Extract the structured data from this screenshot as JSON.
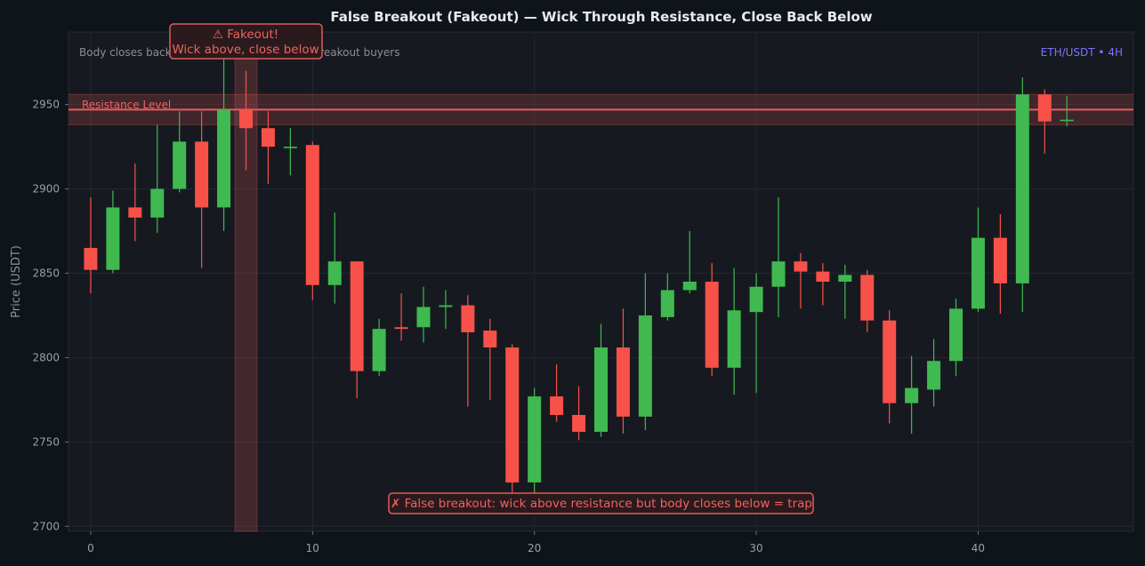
{
  "chart_data": {
    "type": "candlestick",
    "title": "False Breakout (Fakeout) — Wick Through Resistance, Close Back Below",
    "xlabel": "",
    "ylabel": "Price (USDT)",
    "symbol_label": "ETH/USDT • 4H",
    "note": "Body closes back below resistance — traps breakout buyers",
    "x_ticks": [
      0,
      10,
      20,
      30,
      40
    ],
    "y_ticks": [
      2700,
      2750,
      2800,
      2850,
      2900,
      2950
    ],
    "xlim": [
      -1,
      47
    ],
    "ylim": [
      2697,
      2993
    ],
    "resistance": {
      "label": "Resistance Level",
      "value": 2947,
      "zone": [
        2938,
        2956
      ]
    },
    "fakeout_candle_index": 7,
    "callout_top": {
      "line1": "⚠ Fakeout!",
      "line2": "Wick above, close below"
    },
    "callout_bottom": "✗ False breakout: wick above resistance but body closes below = trap",
    "colors": {
      "up": "#3fb950",
      "down": "#f85149",
      "resistance": "#e05a5a",
      "symbol": "#7c72ff",
      "background": "#161a20"
    },
    "candles": [
      {
        "x": 0,
        "open": 2865,
        "close": 2852,
        "high": 2895,
        "low": 2838
      },
      {
        "x": 1,
        "open": 2852,
        "close": 2889,
        "high": 2899,
        "low": 2850
      },
      {
        "x": 2,
        "open": 2889,
        "close": 2883,
        "high": 2915,
        "low": 2869
      },
      {
        "x": 3,
        "open": 2883,
        "close": 2900,
        "high": 2938,
        "low": 2874
      },
      {
        "x": 4,
        "open": 2900,
        "close": 2928,
        "high": 2946,
        "low": 2898
      },
      {
        "x": 5,
        "open": 2928,
        "close": 2889,
        "high": 2946,
        "low": 2853
      },
      {
        "x": 6,
        "open": 2889,
        "close": 2947,
        "high": 2985,
        "low": 2875
      },
      {
        "x": 7,
        "open": 2947,
        "close": 2936,
        "high": 2970,
        "low": 2911
      },
      {
        "x": 8,
        "open": 2936,
        "close": 2925,
        "high": 2946,
        "low": 2903
      },
      {
        "x": 9,
        "open": 2925,
        "close": 2925,
        "high": 2936,
        "low": 2908
      },
      {
        "x": 10,
        "open": 2926,
        "close": 2843,
        "high": 2928,
        "low": 2834
      },
      {
        "x": 11,
        "open": 2843,
        "close": 2857,
        "high": 2886,
        "low": 2832
      },
      {
        "x": 12,
        "open": 2857,
        "close": 2792,
        "high": 2857,
        "low": 2776
      },
      {
        "x": 13,
        "open": 2792,
        "close": 2817,
        "high": 2823,
        "low": 2789
      },
      {
        "x": 14,
        "open": 2818,
        "close": 2817,
        "high": 2838,
        "low": 2810
      },
      {
        "x": 15,
        "open": 2818,
        "close": 2830,
        "high": 2842,
        "low": 2809
      },
      {
        "x": 16,
        "open": 2830,
        "close": 2831,
        "high": 2840,
        "low": 2817
      },
      {
        "x": 17,
        "open": 2831,
        "close": 2815,
        "high": 2837,
        "low": 2771
      },
      {
        "x": 18,
        "open": 2816,
        "close": 2806,
        "high": 2823,
        "low": 2775
      },
      {
        "x": 19,
        "open": 2806,
        "close": 2726,
        "high": 2808,
        "low": 2717
      },
      {
        "x": 20,
        "open": 2726,
        "close": 2777,
        "high": 2782,
        "low": 2719
      },
      {
        "x": 21,
        "open": 2777,
        "close": 2766,
        "high": 2796,
        "low": 2762
      },
      {
        "x": 22,
        "open": 2766,
        "close": 2756,
        "high": 2783,
        "low": 2751
      },
      {
        "x": 23,
        "open": 2756,
        "close": 2806,
        "high": 2820,
        "low": 2753
      },
      {
        "x": 24,
        "open": 2806,
        "close": 2765,
        "high": 2829,
        "low": 2755
      },
      {
        "x": 25,
        "open": 2765,
        "close": 2825,
        "high": 2850,
        "low": 2757
      },
      {
        "x": 26,
        "open": 2824,
        "close": 2840,
        "high": 2850,
        "low": 2822
      },
      {
        "x": 27,
        "open": 2840,
        "close": 2845,
        "high": 2875,
        "low": 2838
      },
      {
        "x": 28,
        "open": 2845,
        "close": 2794,
        "high": 2856,
        "low": 2789
      },
      {
        "x": 29,
        "open": 2794,
        "close": 2828,
        "high": 2853,
        "low": 2778
      },
      {
        "x": 30,
        "open": 2827,
        "close": 2842,
        "high": 2850,
        "low": 2779
      },
      {
        "x": 31,
        "open": 2842,
        "close": 2857,
        "high": 2895,
        "low": 2824
      },
      {
        "x": 32,
        "open": 2857,
        "close": 2851,
        "high": 2862,
        "low": 2829
      },
      {
        "x": 33,
        "open": 2851,
        "close": 2845,
        "high": 2856,
        "low": 2831
      },
      {
        "x": 34,
        "open": 2845,
        "close": 2849,
        "high": 2855,
        "low": 2823
      },
      {
        "x": 35,
        "open": 2849,
        "close": 2822,
        "high": 2852,
        "low": 2815
      },
      {
        "x": 36,
        "open": 2822,
        "close": 2773,
        "high": 2828,
        "low": 2761
      },
      {
        "x": 37,
        "open": 2773,
        "close": 2782,
        "high": 2801,
        "low": 2755
      },
      {
        "x": 38,
        "open": 2781,
        "close": 2798,
        "high": 2811,
        "low": 2771
      },
      {
        "x": 39,
        "open": 2798,
        "close": 2829,
        "high": 2835,
        "low": 2789
      },
      {
        "x": 40,
        "open": 2829,
        "close": 2871,
        "high": 2889,
        "low": 2827
      },
      {
        "x": 41,
        "open": 2871,
        "close": 2844,
        "high": 2885,
        "low": 2826
      },
      {
        "x": 42,
        "open": 2844,
        "close": 2956,
        "high": 2966,
        "low": 2827
      },
      {
        "x": 43,
        "open": 2956,
        "close": 2940,
        "high": 2959,
        "low": 2921
      },
      {
        "x": 44,
        "open": 2941,
        "close": 2941,
        "high": 2955,
        "low": 2937
      }
    ]
  }
}
